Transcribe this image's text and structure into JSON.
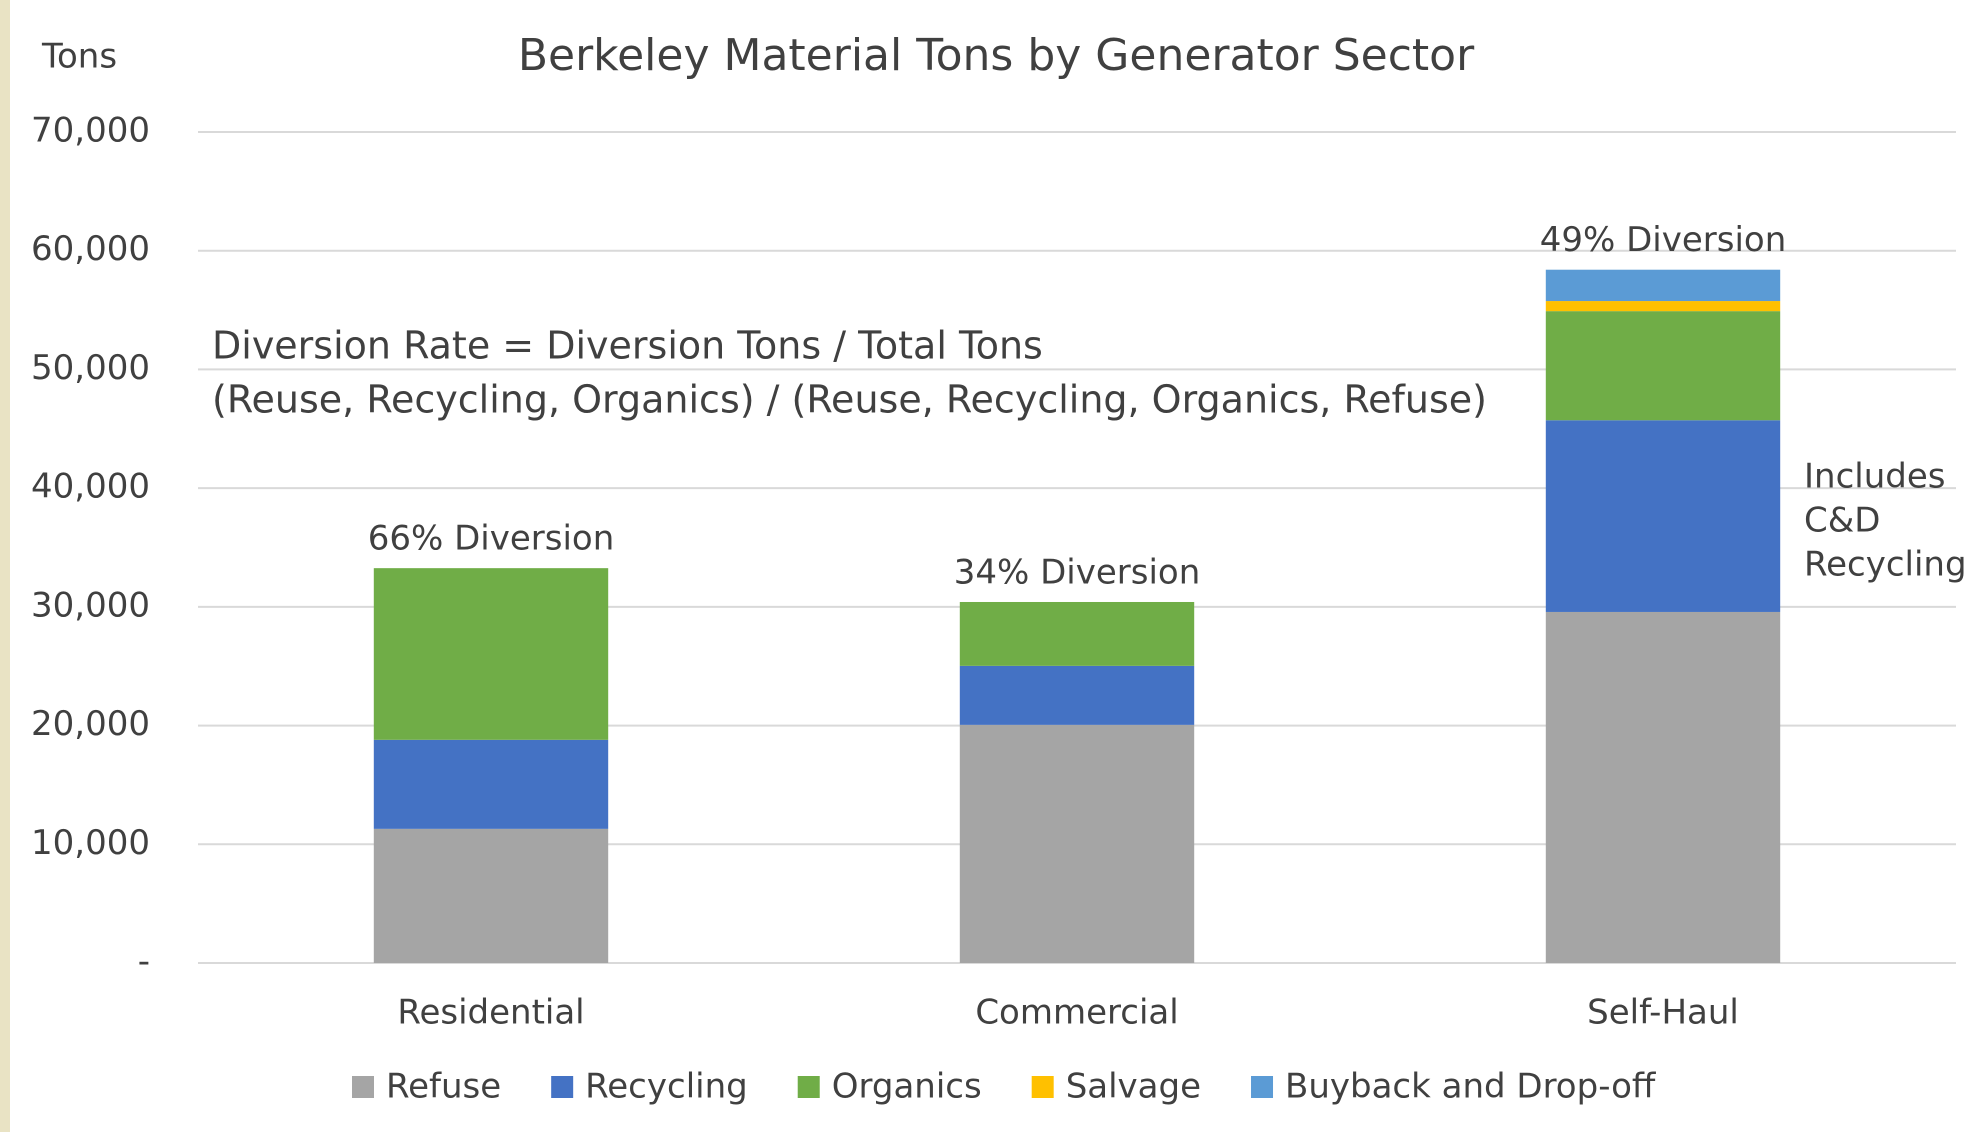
{
  "chart_data": {
    "type": "stacked_bar",
    "title": "Berkeley Material Tons by Generator Sector",
    "y_axis_label": "Tons",
    "categories": [
      "Residential",
      "Commercial",
      "Self-Haul"
    ],
    "series": [
      {
        "name": "Refuse",
        "color": "#a5a5a5",
        "values": [
          11300,
          20060,
          29570
        ]
      },
      {
        "name": "Recycling",
        "color": "#4472c4",
        "values": [
          7500,
          4970,
          16150
        ]
      },
      {
        "name": "Organics",
        "color": "#70ad47",
        "values": [
          14460,
          5380,
          9190
        ]
      },
      {
        "name": "Salvage",
        "color": "#ffc000",
        "values": [
          0,
          0,
          850
        ]
      },
      {
        "name": "Buyback and Drop-off",
        "color": "#5b9bd5",
        "values": [
          0,
          0,
          2640
        ]
      }
    ],
    "diversion_labels": [
      "66% Diversion",
      "34% Diversion",
      "49% Diversion"
    ],
    "formula_lines": [
      "Diversion Rate = Diversion Tons / Total Tons",
      "(Reuse, Recycling, Organics) / (Reuse, Recycling, Organics, Refuse)"
    ],
    "note_lines": [
      "Includes",
      "C&D",
      "Recycling"
    ],
    "ylim": [
      0,
      70000
    ],
    "yticks": [
      {
        "value": 0,
        "label": "-"
      },
      {
        "value": 10000,
        "label": "10,000"
      },
      {
        "value": 20000,
        "label": "20,000"
      },
      {
        "value": 30000,
        "label": "30,000"
      },
      {
        "value": 40000,
        "label": "40,000"
      },
      {
        "value": 50000,
        "label": "50,000"
      },
      {
        "value": 60000,
        "label": "60,000"
      },
      {
        "value": 70000,
        "label": "70,000"
      }
    ],
    "grid": true
  }
}
